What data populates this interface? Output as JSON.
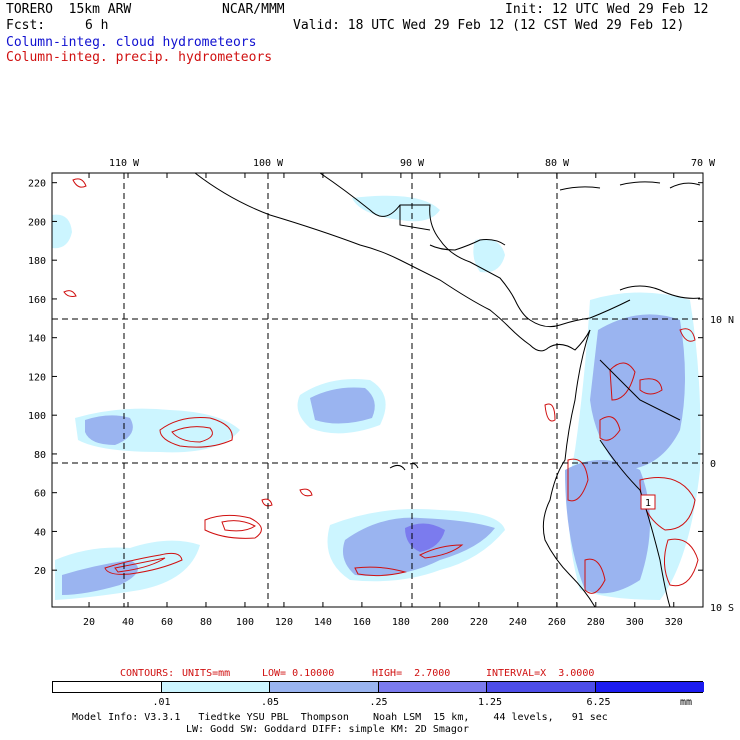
{
  "header": {
    "model": "TORERO  15km ARW",
    "org": "NCAR/MMM",
    "init": "Init: 12 UTC Wed 29 Feb 12",
    "fcst_label": "Fcst:",
    "fcst_value": "6 h",
    "valid": "Valid: 18 UTC Wed 29 Feb 12 (12 CST Wed 29 Feb 12)",
    "field_cloud": "Column-integ. cloud hydrometeors",
    "field_precip": "Column-integ. precip. hydrometeors",
    "cloud_color": "#1010d0",
    "precip_color": "#d01010"
  },
  "map": {
    "lon_labels": [
      "110 W",
      "100 W",
      "90 W",
      "80 W",
      "70 W"
    ],
    "lat_labels": [
      "10 N",
      "0",
      "10 S"
    ],
    "y_ticks": [
      "20",
      "40",
      "60",
      "80",
      "100",
      "120",
      "140",
      "160",
      "180",
      "200",
      "220"
    ],
    "x_ticks": [
      "20",
      "40",
      "60",
      "80",
      "100",
      "120",
      "140",
      "160",
      "180",
      "200",
      "220",
      "240",
      "260",
      "280",
      "300",
      "320"
    ],
    "contour_label": "1",
    "grid_x_range": [
      1,
      335
    ],
    "grid_y_range": [
      1,
      225
    ]
  },
  "contours": {
    "text_prefix": "CONTOURS:",
    "units": "UNITS=mm",
    "low": "LOW= 0.10000",
    "high": "HIGH=  2.7000",
    "interval": "INTERVAL=X  3.0000"
  },
  "colorbar": {
    "levels": [
      ".01",
      ".05",
      ".25",
      "1.25",
      "6.25"
    ],
    "unit": "mm",
    "colors": [
      "#ffffff",
      "#ccf5ff",
      "#9ab4f0",
      "#7b7bee",
      "#4d4de8",
      "#1c1cf0"
    ]
  },
  "footer": {
    "line1": "Model Info: V3.3.1   Tiedtke YSU PBL  Thompson    Noah LSM  15 km,    44 levels,   91 sec",
    "line2": "LW: Godd SW: Goddard DIFF: simple KM: 2D Smagor"
  }
}
